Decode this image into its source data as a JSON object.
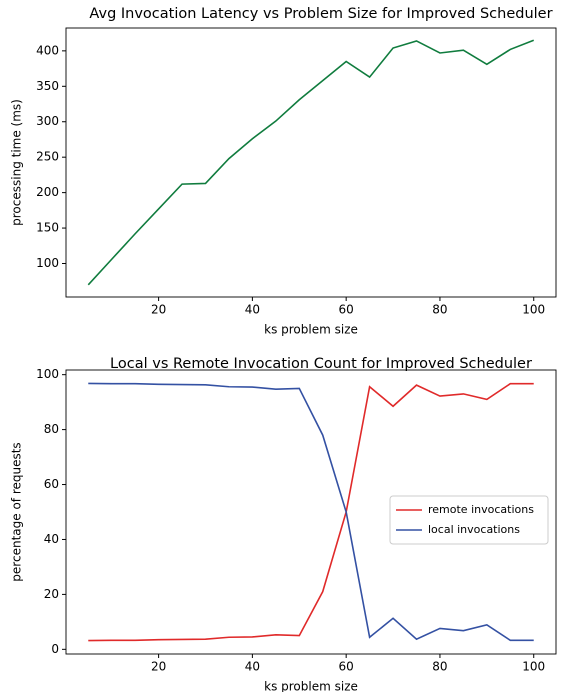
{
  "chart_data": [
    {
      "type": "line",
      "title": "Avg Invocation Latency vs Problem Size for Improved Scheduler",
      "x_label": "ks problem size",
      "y_label": "processing time (ms)",
      "x": [
        5,
        10,
        15,
        20,
        25,
        30,
        35,
        40,
        45,
        50,
        55,
        60,
        65,
        70,
        75,
        80,
        85,
        90,
        95,
        100
      ],
      "series": [
        {
          "name": null,
          "color": "#107c3e",
          "values": [
            70,
            106,
            142,
            177,
            212,
            213,
            248,
            276,
            301,
            331,
            358,
            385,
            363,
            404,
            414,
            397,
            401,
            381,
            402,
            415
          ]
        }
      ],
      "xlim": [
        0.25,
        104.75
      ],
      "xticks": [
        20,
        40,
        60,
        80,
        100
      ],
      "ylim": [
        52.75,
        432.25
      ],
      "yticks": [
        100,
        150,
        200,
        250,
        300,
        350,
        400
      ],
      "grid": false,
      "legend": false
    },
    {
      "type": "line",
      "title": "Local vs Remote Invocation Count for Improved Scheduler",
      "x_label": "ks problem size",
      "y_label": "percentage of requests",
      "x": [
        5,
        10,
        15,
        20,
        25,
        30,
        35,
        40,
        45,
        50,
        55,
        60,
        65,
        70,
        75,
        80,
        85,
        90,
        95,
        100
      ],
      "series": [
        {
          "name": "remote invocations",
          "color": "#e02a2a",
          "values": [
            3.2,
            3.3,
            3.3,
            3.5,
            3.6,
            3.7,
            4.4,
            4.5,
            5.3,
            5.0,
            21,
            50,
            95.6,
            88.5,
            96.2,
            92.2,
            93,
            91,
            96.7,
            96.7
          ]
        },
        {
          "name": "local invocations",
          "color": "#3451a3",
          "values": [
            96.8,
            96.7,
            96.7,
            96.5,
            96.4,
            96.3,
            95.6,
            95.5,
            94.7,
            95,
            78,
            50,
            4.4,
            11.3,
            3.7,
            7.6,
            6.8,
            8.9,
            3.3,
            3.3
          ]
        }
      ],
      "xlim": [
        0.25,
        104.75
      ],
      "xticks": [
        20,
        40,
        60,
        80,
        100
      ],
      "ylim": [
        -1.7,
        101.7
      ],
      "yticks": [
        0,
        20,
        40,
        60,
        80,
        100
      ],
      "grid": false,
      "legend": "center right"
    }
  ]
}
